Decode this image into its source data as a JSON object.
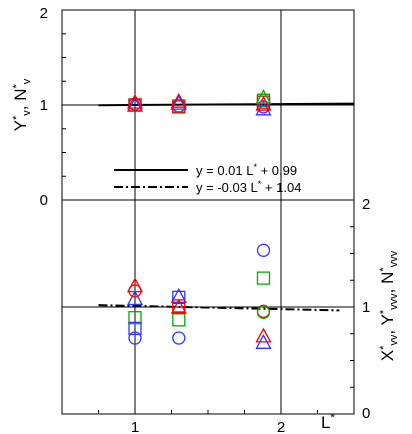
{
  "chart_data": [
    {
      "type": "scatter",
      "panel": "upper",
      "xlabel": "L*",
      "ylabel": "Y*v, N*v",
      "xlim": [
        0.5,
        2.5
      ],
      "ylim": [
        0,
        2
      ],
      "y_ticks": [
        "2",
        "1",
        "0"
      ],
      "grid": true,
      "series": [
        {
          "marker": "circle",
          "color": "#3333ff",
          "x": [
            1.0,
            1.3,
            1.88
          ],
          "y": [
            1.01,
            0.99,
            0.98
          ]
        },
        {
          "marker": "square",
          "color": "#00aa00",
          "x": [
            1.0,
            1.3,
            1.88
          ],
          "y": [
            1.0,
            0.99,
            1.05
          ]
        },
        {
          "marker": "triangle",
          "color": "#ff0000",
          "x": [
            1.0,
            1.3,
            1.88
          ],
          "y": [
            1.03,
            1.04,
            1.01
          ]
        },
        {
          "marker": "triangle",
          "color": "#3333ff",
          "x": [
            1.0,
            1.3,
            1.88
          ],
          "y": [
            1.0,
            1.02,
            0.96
          ]
        },
        {
          "marker": "square",
          "color": "#ff0000",
          "x": [
            1.0,
            1.3,
            1.88
          ],
          "y": [
            1.0,
            0.98,
            1.03
          ]
        },
        {
          "marker": "triangle",
          "color": "#00aa00",
          "x": [
            1.88
          ],
          "y": [
            1.08
          ]
        }
      ],
      "fit": {
        "style": "solid",
        "slope": 0.01,
        "intercept": 0.99,
        "x_range": [
          0.75,
          2.5
        ]
      }
    },
    {
      "type": "scatter",
      "panel": "lower",
      "xlabel": "L*",
      "ylabel": "X*vv, Y*vvv, N*vvv",
      "xlim": [
        0.5,
        2.5
      ],
      "ylim": [
        0,
        2
      ],
      "y_ticks": [
        "2",
        "1",
        "0"
      ],
      "x_ticks": [
        "1",
        "2"
      ],
      "grid": true,
      "series": [
        {
          "marker": "circle",
          "color": "#3333ff",
          "x": [
            1.0,
            1.3,
            1.88
          ],
          "y": [
            0.71,
            0.71,
            1.53
          ]
        },
        {
          "marker": "square",
          "color": "#00aa00",
          "x": [
            1.0,
            1.3,
            1.88
          ],
          "y": [
            0.9,
            0.88,
            1.27
          ]
        },
        {
          "marker": "triangle",
          "color": "#ff0000",
          "x": [
            1.0,
            1.3,
            1.88
          ],
          "y": [
            1.2,
            1.0,
            0.73
          ]
        },
        {
          "marker": "triangle",
          "color": "#3333ff",
          "x": [
            1.0,
            1.3,
            1.88
          ],
          "y": [
            1.08,
            1.1,
            0.67
          ]
        },
        {
          "marker": "square",
          "color": "#3333ff",
          "x": [
            1.0,
            1.3
          ],
          "y": [
            0.8,
            1.09
          ]
        },
        {
          "marker": "square",
          "color": "#ff0000",
          "x": [
            1.3
          ],
          "y": [
            1.01
          ]
        },
        {
          "marker": "circle",
          "color": "#ff0000",
          "x": [
            1.0,
            1.88
          ],
          "y": [
            1.15,
            0.96
          ]
        },
        {
          "marker": "circle",
          "color": "#00aa00",
          "x": [
            1.88
          ],
          "y": [
            0.95
          ]
        }
      ],
      "fit": {
        "style": "dash-dot",
        "slope": -0.03,
        "intercept": 1.04,
        "x_range": [
          0.75,
          2.4
        ]
      }
    }
  ],
  "legend": {
    "position": "center",
    "entries": [
      {
        "style": "solid",
        "label": "y = 0.01 L* + 0.99"
      },
      {
        "style": "dash-dot",
        "label": "y = -0.03 L* + 1.04"
      }
    ]
  },
  "labels": {
    "y_upper": {
      "base": "Y",
      "sup": "*",
      "sub": "v",
      "sep": ", ",
      "base2": "N",
      "sup2": "*",
      "sub2": "v"
    },
    "y_lower": {
      "base": "X",
      "sup": "*",
      "sub": "vv",
      "sep": ", ",
      "base2": "Y",
      "sup2": "*",
      "sub2": "vvv",
      "sep2": ", ",
      "base3": "N",
      "sup3": "*",
      "sub3": "vvv"
    },
    "x": {
      "base": "L",
      "sup": "*"
    },
    "legend1": {
      "pre": "y =  0.01 L",
      "sup": "*",
      "post": " + 0.99"
    },
    "legend2": {
      "pre": "y = -0.03 L",
      "sup": "*",
      "post": " + 1.04"
    }
  }
}
